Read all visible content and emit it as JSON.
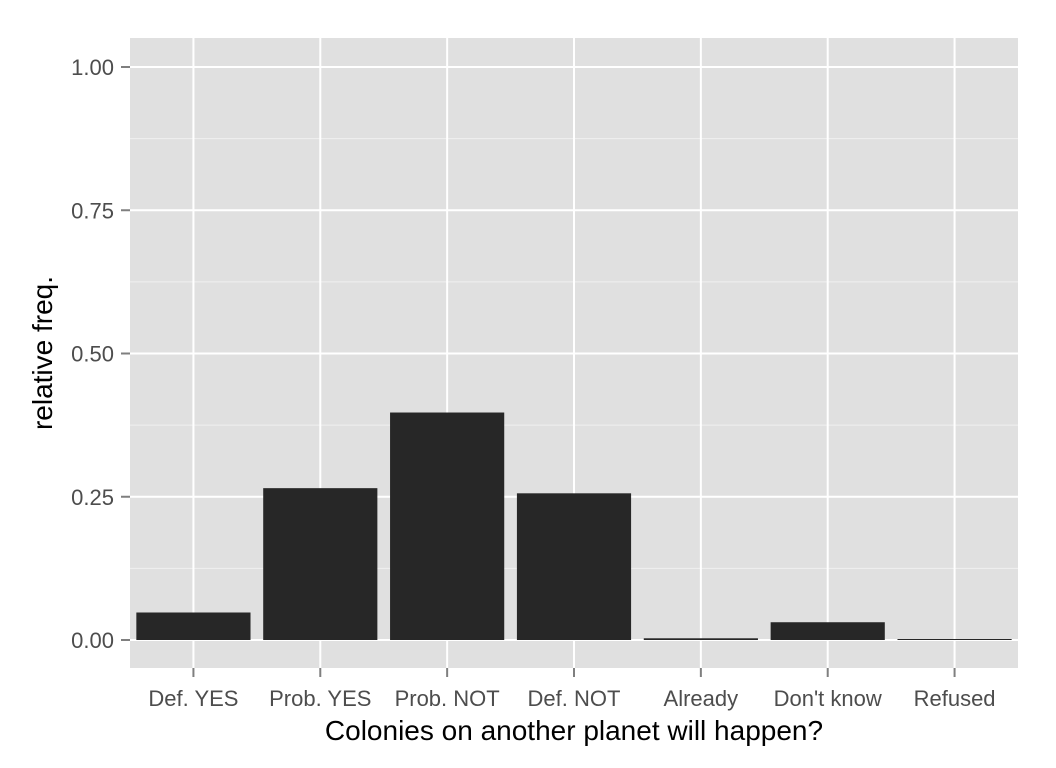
{
  "chart_data": {
    "type": "bar",
    "title": "",
    "xlabel": "Colonies on another planet will happen?",
    "ylabel": "relative freq.",
    "categories": [
      "Def. YES",
      "Prob. YES",
      "Prob. NOT",
      "Def. NOT",
      "Already",
      "Don't know",
      "Refused"
    ],
    "values": [
      0.048,
      0.265,
      0.397,
      0.256,
      0.003,
      0.031,
      0.001
    ],
    "ylim": [
      -0.05,
      1.05
    ],
    "yticks": [
      0,
      0.25,
      0.5,
      0.75,
      1.0
    ],
    "ytick_labels": [
      "0.00",
      "0.25",
      "0.50",
      "0.75",
      "1.00"
    ],
    "grid": true,
    "legend": "none",
    "colors": {
      "panel": "#e0e0e0",
      "grid_major": "#ffffff",
      "grid_minor": "#f0f0f0",
      "bar": "#272727",
      "tick": "#4d4d4d",
      "tick_mark": "#7f7f7f"
    }
  }
}
